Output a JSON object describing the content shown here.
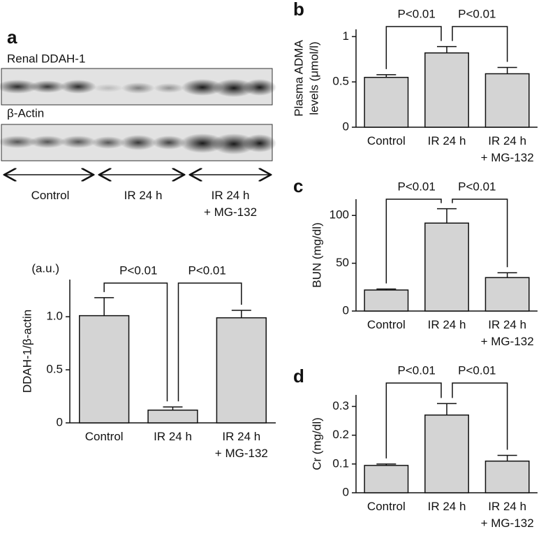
{
  "blot": {
    "panel": "a",
    "labels": [
      "Renal DDAH-1",
      "β-Actin"
    ],
    "groups": [
      "Control",
      "IR 24 h",
      "IR 24 h + MG-132"
    ]
  },
  "chart_data": [
    {
      "type": "bar",
      "ylabel": [
        "DDAH-1/β-actin"
      ],
      "unit": "(a.u.)",
      "categories": [
        "Control",
        "IR 24 h",
        "IR 24 h + MG-132"
      ],
      "values": [
        1.01,
        0.12,
        0.99
      ],
      "errors": [
        0.17,
        0.03,
        0.07
      ],
      "color": "#d4d4d4",
      "ylim": [
        0,
        1.35
      ],
      "yticks": [
        0,
        0.5,
        {
          "value": 1,
          "label": "1.0"
        }
      ],
      "annotations": [
        "P<0.01",
        "P<0.01"
      ]
    },
    {
      "type": "bar",
      "panel": "b",
      "ylabel": [
        "Plasma ADMA",
        "levels (μmol/l)"
      ],
      "categories": [
        "Control",
        "IR 24 h",
        "IR 24 h + MG-132"
      ],
      "values": [
        0.55,
        0.82,
        0.59
      ],
      "errors": [
        0.03,
        0.07,
        0.07
      ],
      "color": "#d4d4d4",
      "ylim": [
        0,
        1.08
      ],
      "yticks": [
        0,
        0.5,
        1
      ],
      "annotations": [
        "P<0.01",
        "P<0.01"
      ]
    },
    {
      "type": "bar",
      "panel": "c",
      "ylabel": [
        "BUN (mg/dl)"
      ],
      "categories": [
        "Control",
        "IR 24 h",
        "IR 24 h + MG-132"
      ],
      "values": [
        22,
        92,
        35
      ],
      "errors": [
        1,
        15,
        5
      ],
      "color": "#d4d4d4",
      "ylim": [
        0,
        117
      ],
      "yticks": [
        0,
        50,
        100
      ],
      "annotations": [
        "P<0.01",
        "P<0.01"
      ]
    },
    {
      "type": "bar",
      "panel": "d",
      "ylabel": [
        "Cr (mg/dl)"
      ],
      "categories": [
        "Control",
        "IR 24 h",
        "IR 24 h + MG-132"
      ],
      "values": [
        0.095,
        0.27,
        0.11
      ],
      "errors": [
        0.005,
        0.04,
        0.02
      ],
      "color": "#d4d4d4",
      "ylim": [
        0,
        0.34
      ],
      "yticks": [
        0,
        0.1,
        0.2,
        0.3
      ],
      "annotations": [
        "P<0.01",
        "P<0.01"
      ]
    }
  ]
}
